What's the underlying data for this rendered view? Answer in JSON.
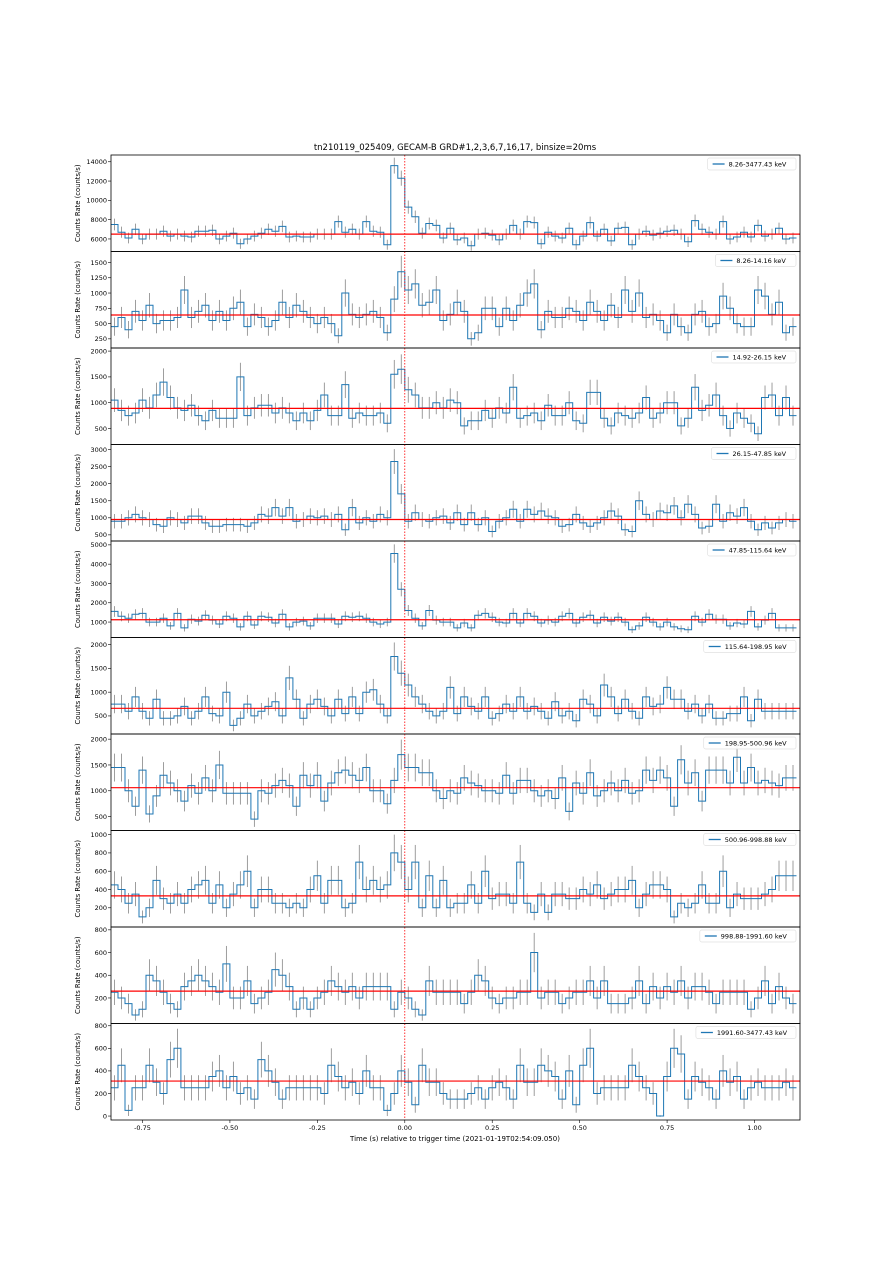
{
  "chart_data": {
    "type": "line",
    "subtype": "step-lightcurve-stack",
    "title": "tn210119_025409, GECAM-B GRD#1,2,3,6,7,16,17, binsize=20ms",
    "xlabel": "Time (s) relative to trigger time (2021-01-19T02:54:09.050)",
    "ylabel": "Counts Rate (counts/s)",
    "xlim": [
      -0.84,
      1.13
    ],
    "x_start": -0.84,
    "binsize": 0.02,
    "xticks": [
      -0.75,
      -0.5,
      -0.25,
      0.0,
      0.25,
      0.5,
      0.75,
      1.0
    ],
    "xtick_labels": [
      "-0.75",
      "-0.50",
      "-0.25",
      "0.00",
      "0.25",
      "0.50",
      "0.75",
      "1.00"
    ],
    "trigger_time": 0.0,
    "legend_position": "top-right",
    "colors": {
      "series": "#1f77b4",
      "background": "#ff0000",
      "trigger": "#ff0000",
      "errorbar": "#808080"
    },
    "panels": [
      {
        "name": "8.26-3477.43 keV",
        "ylim": [
          4700,
          14700
        ],
        "yticks": [
          6000,
          8000,
          10000,
          12000,
          14000
        ],
        "background": 6500,
        "values": [
          7500,
          6700,
          6100,
          7000,
          6000,
          6500,
          6500,
          6800,
          6300,
          6500,
          6300,
          6200,
          6800,
          6800,
          6900,
          6000,
          6300,
          6600,
          5500,
          6000,
          6300,
          6600,
          7000,
          6800,
          7300,
          6200,
          6300,
          6200,
          6200,
          6500,
          6500,
          6500,
          7800,
          6700,
          7000,
          6500,
          7800,
          6800,
          6700,
          5400,
          13600,
          12300,
          9300,
          8300,
          6600,
          7600,
          7400,
          6100,
          7100,
          5900,
          6100,
          5300,
          6500,
          6600,
          6400,
          5900,
          6500,
          7400,
          6500,
          7800,
          7700,
          5500,
          6700,
          6300,
          6100,
          7100,
          5400,
          6300,
          7700,
          6300,
          7000,
          5800,
          7100,
          7200,
          5400,
          6500,
          6800,
          6400,
          6600,
          6800,
          6900,
          6500,
          5700,
          7900,
          7000,
          6700,
          6500,
          7800,
          6000,
          6200,
          6700,
          6200,
          7400,
          6300,
          6500,
          7100,
          6000,
          6100
        ]
      },
      {
        "name": "8.26-14.16 keV",
        "ylim": [
          100,
          1680
        ],
        "yticks": [
          250,
          500,
          750,
          1000,
          1250,
          1500
        ],
        "background": 640,
        "values": [
          450,
          600,
          400,
          700,
          550,
          800,
          500,
          550,
          550,
          600,
          1050,
          600,
          700,
          800,
          550,
          700,
          550,
          750,
          850,
          450,
          650,
          600,
          450,
          550,
          850,
          600,
          800,
          700,
          600,
          500,
          600,
          500,
          300,
          1000,
          650,
          600,
          650,
          700,
          600,
          350,
          900,
          1350,
          1050,
          1150,
          800,
          850,
          1050,
          550,
          650,
          850,
          700,
          250,
          350,
          750,
          750,
          450,
          750,
          550,
          800,
          1000,
          1150,
          400,
          700,
          600,
          600,
          750,
          700,
          550,
          850,
          700,
          550,
          800,
          600,
          1050,
          700,
          1000,
          600,
          650,
          550,
          350,
          650,
          450,
          350,
          650,
          700,
          450,
          500,
          950,
          750,
          500,
          450,
          450,
          1050,
          950,
          650,
          850,
          350,
          450
        ]
      },
      {
        "name": "14.92-26.15 keV",
        "ylim": [
          190,
          2060
        ],
        "yticks": [
          500,
          1000,
          1500,
          2000
        ],
        "background": 890,
        "values": [
          1050,
          850,
          750,
          800,
          1050,
          900,
          1150,
          1400,
          1100,
          900,
          850,
          950,
          750,
          650,
          850,
          700,
          700,
          700,
          1500,
          750,
          900,
          950,
          950,
          800,
          900,
          800,
          650,
          800,
          650,
          850,
          1150,
          750,
          750,
          1350,
          700,
          800,
          750,
          750,
          800,
          600,
          1550,
          1650,
          1250,
          1150,
          900,
          900,
          1000,
          900,
          1050,
          1000,
          550,
          650,
          650,
          850,
          700,
          900,
          800,
          1300,
          700,
          750,
          800,
          650,
          950,
          750,
          750,
          1000,
          650,
          600,
          1200,
          1200,
          700,
          550,
          800,
          750,
          700,
          800,
          1100,
          700,
          800,
          1000,
          1000,
          550,
          700,
          1300,
          850,
          950,
          1150,
          750,
          500,
          800,
          700,
          600,
          400,
          1100,
          1150,
          750,
          1100,
          750
        ]
      },
      {
        "name": "26.15-47.85 keV",
        "ylim": [
          320,
          3150
        ],
        "yticks": [
          500,
          1000,
          1500,
          2000,
          2500,
          3000
        ],
        "background": 950,
        "values": [
          900,
          900,
          1000,
          1100,
          1000,
          950,
          800,
          750,
          1000,
          950,
          850,
          1050,
          1050,
          850,
          750,
          750,
          800,
          800,
          800,
          750,
          850,
          1100,
          1050,
          1300,
          1050,
          1300,
          900,
          950,
          1050,
          1000,
          1050,
          950,
          1100,
          650,
          1300,
          850,
          1000,
          900,
          1100,
          1000,
          2650,
          1700,
          900,
          1150,
          950,
          900,
          1000,
          1050,
          850,
          1150,
          800,
          1150,
          800,
          1000,
          600,
          900,
          1000,
          1250,
          900,
          1250,
          1100,
          1200,
          1050,
          1000,
          750,
          800,
          1100,
          850,
          750,
          850,
          1000,
          1200,
          1050,
          650,
          600,
          1500,
          1100,
          950,
          1200,
          1150,
          1350,
          1000,
          1400,
          1100,
          700,
          750,
          1400,
          900,
          1150,
          1050,
          1300,
          900,
          650,
          850,
          700,
          850,
          950,
          900
        ]
      },
      {
        "name": "47.85-115.64 keV",
        "ylim": [
          200,
          5200
        ],
        "yticks": [
          1000,
          2000,
          3000,
          4000,
          5000
        ],
        "background": 1120,
        "values": [
          1550,
          1300,
          1200,
          1400,
          1450,
          1000,
          1000,
          1200,
          800,
          1450,
          700,
          1150,
          1050,
          1350,
          1100,
          900,
          1300,
          1200,
          750,
          1300,
          850,
          1300,
          1250,
          950,
          1400,
          750,
          1000,
          1050,
          800,
          1200,
          1200,
          1200,
          900,
          1300,
          1250,
          1300,
          1200,
          1000,
          900,
          1000,
          4550,
          2700,
          1600,
          1200,
          800,
          1600,
          1100,
          1000,
          1000,
          700,
          950,
          700,
          1350,
          1450,
          1250,
          1000,
          950,
          1450,
          950,
          1450,
          1300,
          950,
          1100,
          1000,
          1300,
          1450,
          950,
          1250,
          1350,
          950,
          1250,
          1050,
          1250,
          1000,
          600,
          800,
          1250,
          1000,
          750,
          1000,
          750,
          650,
          600,
          1300,
          1000,
          1400,
          1150,
          1150,
          800,
          950,
          900,
          1550,
          750,
          1100,
          1450,
          700,
          700,
          700
        ]
      },
      {
        "name": "115.64-198.95 keV",
        "ylim": [
          120,
          2150
        ],
        "yticks": [
          500,
          1000,
          1500,
          2000
        ],
        "background": 660,
        "values": [
          750,
          750,
          600,
          900,
          600,
          450,
          850,
          450,
          450,
          500,
          700,
          450,
          600,
          900,
          550,
          500,
          1000,
          300,
          450,
          750,
          500,
          600,
          700,
          800,
          500,
          1300,
          850,
          450,
          750,
          850,
          700,
          500,
          850,
          550,
          900,
          550,
          1000,
          1050,
          750,
          500,
          1750,
          1400,
          1150,
          900,
          750,
          600,
          500,
          600,
          1100,
          550,
          900,
          700,
          600,
          900,
          450,
          550,
          750,
          600,
          900,
          600,
          700,
          600,
          450,
          800,
          500,
          600,
          400,
          850,
          750,
          500,
          1150,
          900,
          550,
          850,
          600,
          450,
          900,
          700,
          750,
          1100,
          850,
          850,
          600,
          750,
          500,
          750,
          450,
          450,
          550,
          550,
          900,
          400,
          850,
          600,
          600,
          600,
          600,
          600
        ]
      },
      {
        "name": "198.95-500.96 keV",
        "ylim": [
          230,
          2100
        ],
        "yticks": [
          500,
          1000,
          1500,
          2000
        ],
        "background": 1060,
        "values": [
          1450,
          1450,
          1000,
          700,
          1400,
          550,
          900,
          1300,
          1150,
          1000,
          800,
          1100,
          950,
          1250,
          1000,
          1500,
          950,
          950,
          950,
          950,
          450,
          1000,
          950,
          1100,
          1200,
          1100,
          700,
          1300,
          1100,
          1300,
          800,
          1150,
          1350,
          1400,
          1300,
          1200,
          1450,
          1000,
          1000,
          750,
          1200,
          1700,
          1450,
          1450,
          1350,
          1350,
          1000,
          850,
          1000,
          950,
          1250,
          1150,
          1100,
          1000,
          1000,
          950,
          1300,
          950,
          1200,
          1200,
          1000,
          900,
          1000,
          850,
          1250,
          600,
          1150,
          950,
          1350,
          900,
          1000,
          1150,
          1000,
          1200,
          950,
          1000,
          1400,
          1200,
          1400,
          1250,
          700,
          1600,
          1150,
          1350,
          800,
          1400,
          1400,
          1400,
          1150,
          1650,
          1150,
          1450,
          1150,
          1200,
          1150,
          1100,
          1250,
          1250
        ]
      },
      {
        "name": "500.96-998.88 keV",
        "ylim": [
          -10,
          1045
        ],
        "yticks": [
          200,
          400,
          600,
          800,
          1000
        ],
        "background": 330,
        "values": [
          450,
          400,
          250,
          350,
          100,
          200,
          500,
          300,
          250,
          350,
          250,
          400,
          450,
          500,
          250,
          450,
          200,
          350,
          450,
          600,
          200,
          400,
          400,
          250,
          250,
          200,
          250,
          200,
          400,
          550,
          250,
          500,
          500,
          200,
          250,
          700,
          400,
          500,
          400,
          450,
          800,
          700,
          400,
          700,
          200,
          550,
          200,
          500,
          200,
          250,
          250,
          450,
          250,
          600,
          300,
          350,
          350,
          250,
          700,
          250,
          150,
          350,
          150,
          350,
          350,
          300,
          300,
          400,
          350,
          450,
          300,
          350,
          400,
          400,
          500,
          200,
          350,
          450,
          450,
          400,
          100,
          250,
          200,
          250,
          450,
          250,
          250,
          600,
          200,
          350,
          300,
          300,
          300,
          350,
          400,
          550,
          550,
          550
        ]
      },
      {
        "name": "998.88-1991.60 keV",
        "ylim": [
          -25,
          825
        ],
        "yticks": [
          200,
          400,
          600,
          800
        ],
        "background": 260,
        "values": [
          250,
          200,
          150,
          50,
          100,
          400,
          350,
          250,
          150,
          100,
          300,
          350,
          400,
          350,
          300,
          250,
          500,
          200,
          200,
          350,
          150,
          200,
          250,
          450,
          400,
          300,
          100,
          200,
          100,
          200,
          250,
          350,
          300,
          250,
          300,
          200,
          300,
          300,
          300,
          300,
          100,
          250,
          200,
          100,
          50,
          350,
          250,
          250,
          250,
          250,
          150,
          250,
          400,
          350,
          200,
          150,
          200,
          200,
          250,
          250,
          600,
          200,
          250,
          250,
          150,
          200,
          250,
          250,
          350,
          200,
          350,
          150,
          150,
          150,
          200,
          350,
          150,
          300,
          200,
          300,
          250,
          350,
          200,
          300,
          300,
          250,
          150,
          250,
          250,
          250,
          250,
          100,
          200,
          350,
          150,
          300,
          200,
          150
        ]
      },
      {
        "name": "1991.60-3477.43 keV",
        "ylim": [
          -35,
          820
        ],
        "yticks": [
          0,
          200,
          400,
          600,
          800
        ],
        "background": 310,
        "values": [
          250,
          450,
          50,
          250,
          250,
          450,
          300,
          200,
          500,
          600,
          250,
          250,
          250,
          250,
          350,
          400,
          250,
          350,
          200,
          250,
          150,
          500,
          400,
          300,
          150,
          250,
          250,
          250,
          250,
          250,
          200,
          450,
          350,
          250,
          300,
          200,
          400,
          250,
          250,
          50,
          200,
          400,
          300,
          100,
          450,
          300,
          300,
          200,
          150,
          150,
          150,
          200,
          250,
          150,
          250,
          300,
          250,
          150,
          450,
          300,
          300,
          450,
          400,
          350,
          150,
          400,
          100,
          450,
          600,
          200,
          250,
          250,
          250,
          250,
          450,
          350,
          250,
          200,
          0,
          350,
          600,
          550,
          150,
          350,
          300,
          250,
          150,
          400,
          300,
          350,
          150,
          250,
          300,
          250,
          250,
          250,
          300,
          250
        ]
      }
    ]
  }
}
